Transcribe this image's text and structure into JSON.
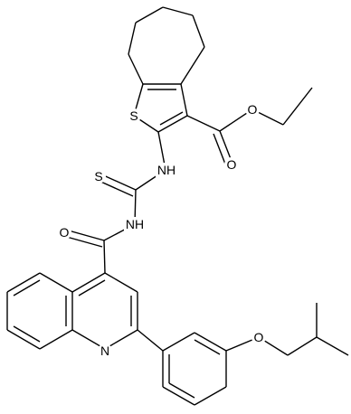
{
  "atoms": [
    {
      "label": "S"
    },
    {
      "label": "NH"
    },
    {
      "label": "S"
    },
    {
      "label": "NH"
    },
    {
      "label": "O"
    },
    {
      "label": "N"
    },
    {
      "label": "O"
    },
    {
      "label": "O"
    },
    {
      "label": "O"
    }
  ]
}
